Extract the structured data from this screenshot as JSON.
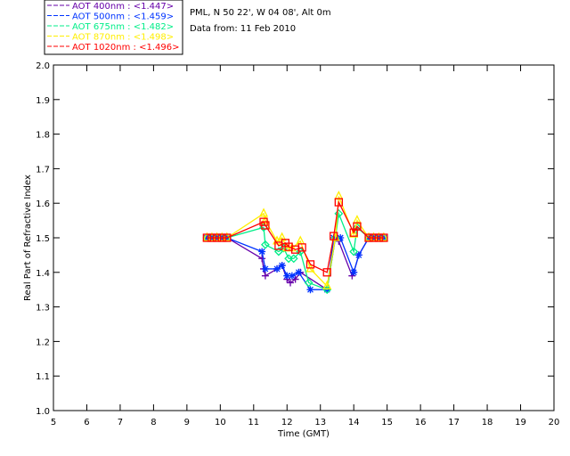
{
  "header": {
    "site": "PML, N 50 22', W 04 08', Alt 0m",
    "date": "Data from: 11 Feb 2010"
  },
  "chart_data": {
    "type": "scatter",
    "title": "",
    "xlabel": "Time (GMT)",
    "ylabel": "Real Part of Refractive Index",
    "xlim": [
      5,
      20
    ],
    "ylim": [
      1.0,
      2.0
    ],
    "xticks": [
      "5",
      "6",
      "7",
      "8",
      "9",
      "10",
      "11",
      "12",
      "13",
      "14",
      "15",
      "16",
      "17",
      "18",
      "19",
      "20"
    ],
    "yticks": [
      "1.0",
      "1.1",
      "1.2",
      "1.3",
      "1.4",
      "1.5",
      "1.6",
      "1.7",
      "1.8",
      "1.9",
      "2.0"
    ],
    "grid": false,
    "legend_position": "top-left-outside",
    "series": [
      {
        "name": "AOT  400nm",
        "legend": "AOT  400nm : <1.447>",
        "color": "#6600aa",
        "marker": "plus",
        "x": [
          9.6,
          9.75,
          9.9,
          10.05,
          10.2,
          11.25,
          11.3,
          11.35,
          11.7,
          11.85,
          12.0,
          12.1,
          12.25,
          12.4,
          13.2,
          13.45,
          13.55,
          13.95,
          14.0,
          14.15,
          14.45,
          14.6,
          14.75,
          14.9
        ],
        "y": [
          1.5,
          1.5,
          1.5,
          1.5,
          1.5,
          1.44,
          1.41,
          1.39,
          1.41,
          1.42,
          1.38,
          1.37,
          1.38,
          1.4,
          1.35,
          1.5,
          1.49,
          1.39,
          1.4,
          1.45,
          1.5,
          1.5,
          1.5,
          1.5
        ]
      },
      {
        "name": "AOT  500nm",
        "legend": "AOT  500nm : <1.459>",
        "color": "#0033ff",
        "marker": "asterisk",
        "x": [
          9.6,
          9.75,
          9.9,
          10.05,
          10.2,
          11.25,
          11.35,
          11.7,
          11.85,
          12.0,
          12.15,
          12.35,
          12.7,
          13.2,
          13.4,
          13.6,
          14.0,
          14.15,
          14.45,
          14.6,
          14.75,
          14.9
        ],
        "y": [
          1.5,
          1.5,
          1.5,
          1.5,
          1.5,
          1.46,
          1.41,
          1.41,
          1.42,
          1.39,
          1.39,
          1.4,
          1.35,
          1.35,
          1.5,
          1.5,
          1.4,
          1.45,
          1.5,
          1.5,
          1.5,
          1.5
        ]
      },
      {
        "name": "AOT  675nm",
        "legend": "AOT  675nm : <1.482>",
        "color": "#00ee88",
        "marker": "diamond",
        "x": [
          9.6,
          9.75,
          9.9,
          10.05,
          10.2,
          11.3,
          11.35,
          11.75,
          11.9,
          12.05,
          12.2,
          12.4,
          12.65,
          13.2,
          13.45,
          13.55,
          14.0,
          14.1,
          14.45,
          14.6,
          14.75,
          14.9
        ],
        "y": [
          1.5,
          1.5,
          1.5,
          1.5,
          1.5,
          1.53,
          1.48,
          1.46,
          1.47,
          1.44,
          1.44,
          1.46,
          1.37,
          1.35,
          1.5,
          1.57,
          1.46,
          1.53,
          1.5,
          1.5,
          1.5,
          1.5
        ]
      },
      {
        "name": "AOT  870nm",
        "legend": "AOT  870nm : <1.498>",
        "color": "#ffee00",
        "marker": "triangle",
        "x": [
          9.6,
          9.75,
          9.9,
          10.05,
          10.2,
          11.3,
          11.35,
          11.7,
          11.85,
          12.0,
          12.15,
          12.4,
          12.7,
          13.2,
          13.45,
          13.55,
          14.0,
          14.1,
          14.45,
          14.6,
          14.75,
          14.9
        ],
        "y": [
          1.5,
          1.5,
          1.5,
          1.5,
          1.5,
          1.57,
          1.55,
          1.49,
          1.5,
          1.47,
          1.47,
          1.49,
          1.41,
          1.36,
          1.5,
          1.62,
          1.51,
          1.55,
          1.5,
          1.5,
          1.5,
          1.5
        ]
      },
      {
        "name": "AOT 1020nm",
        "legend": "AOT 1020nm : <1.496>",
        "color": "#ff0000",
        "marker": "square",
        "x": [
          9.6,
          9.75,
          9.9,
          10.05,
          10.2,
          11.3,
          11.35,
          11.75,
          11.95,
          12.05,
          12.25,
          12.45,
          12.7,
          13.2,
          13.4,
          13.55,
          14.0,
          14.1,
          14.45,
          14.6,
          14.75,
          14.9
        ],
        "y": [
          1.5,
          1.5,
          1.5,
          1.5,
          1.5,
          1.546,
          1.536,
          1.477,
          1.485,
          1.474,
          1.466,
          1.472,
          1.423,
          1.4,
          1.505,
          1.603,
          1.515,
          1.533,
          1.5,
          1.5,
          1.5,
          1.5
        ]
      }
    ]
  }
}
